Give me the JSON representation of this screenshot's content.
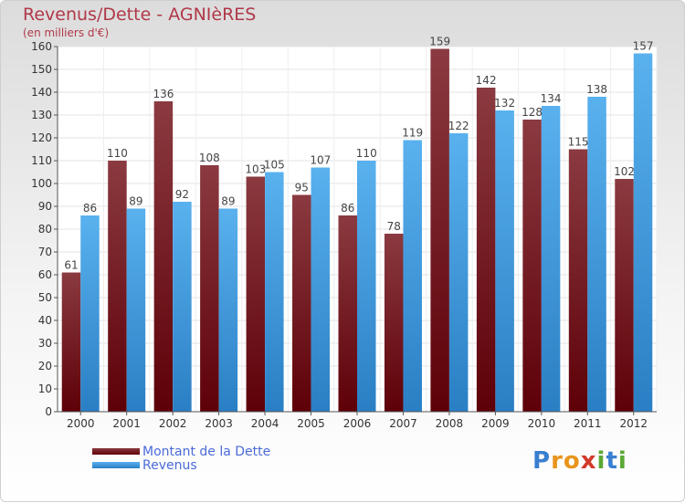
{
  "header": {
    "title": "Revenus/Dette - AGNIèRES",
    "subtitle": "(en milliers d'€)"
  },
  "legend": {
    "items": [
      {
        "label": "Montant de la Dette",
        "color": "#6b0a12"
      },
      {
        "label": "Revenus",
        "color": "#3f9be0"
      }
    ]
  },
  "logo": {
    "text": "Proxiti"
  },
  "chart_data": {
    "type": "bar",
    "title": "Revenus/Dette - AGNIèRES",
    "subtitle": "(en milliers d'€)",
    "xlabel": "",
    "ylabel": "",
    "ylim": [
      0,
      160
    ],
    "yticks": [
      0,
      10,
      20,
      30,
      40,
      50,
      60,
      70,
      80,
      90,
      100,
      110,
      120,
      130,
      140,
      150,
      160
    ],
    "grid": true,
    "legend_position": "bottom-left",
    "categories": [
      "2000",
      "2001",
      "2002",
      "2003",
      "2004",
      "2005",
      "2006",
      "2007",
      "2008",
      "2009",
      "2010",
      "2011",
      "2012"
    ],
    "series": [
      {
        "name": "Montant de la Dette",
        "color": "#6b0a12",
        "values": [
          61,
          110,
          136,
          108,
          103,
          95,
          86,
          78,
          159,
          142,
          128,
          115,
          102
        ]
      },
      {
        "name": "Revenus",
        "color": "#3f9be0",
        "values": [
          86,
          89,
          92,
          89,
          105,
          107,
          110,
          119,
          122,
          132,
          134,
          138,
          157
        ]
      }
    ]
  }
}
